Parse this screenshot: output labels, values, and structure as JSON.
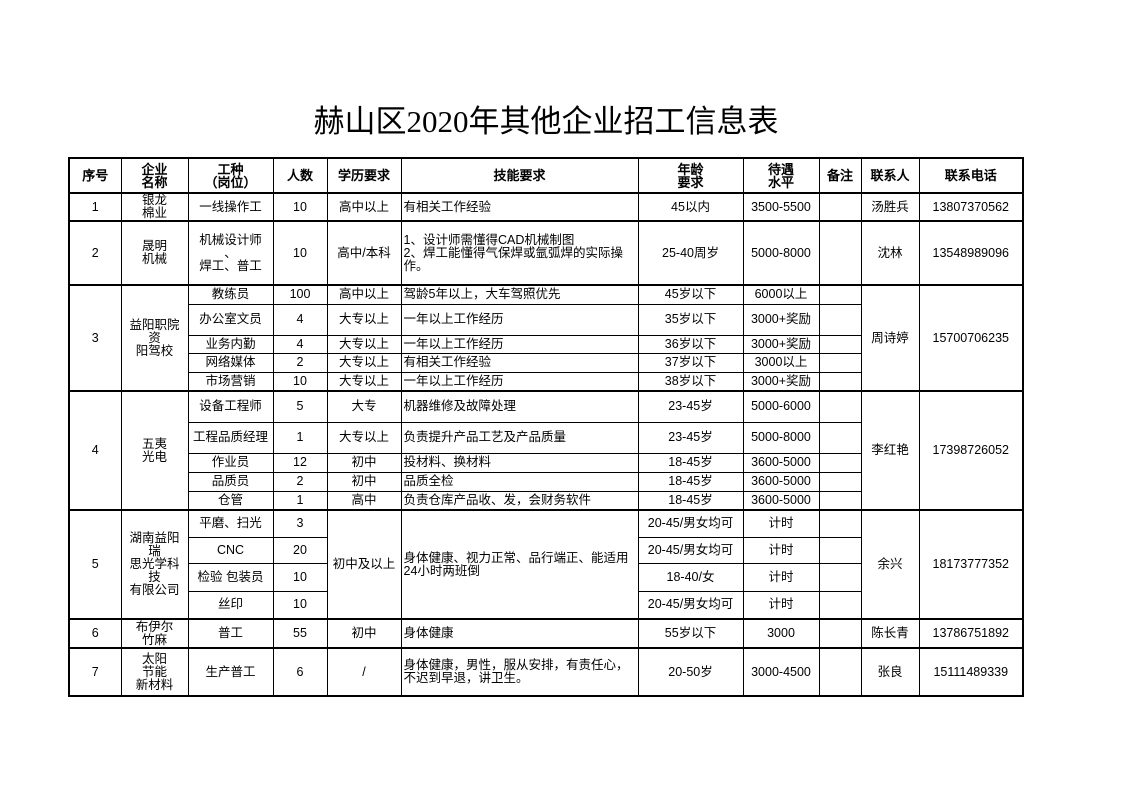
{
  "title": "赫山区2020年其他企业招工信息表",
  "headers": [
    "序号",
    "企业\n名称",
    "工种\n（岗位）",
    "人数",
    "学历要求",
    "技能要求",
    "年龄\n要求",
    "待遇\n水平",
    "备注",
    "联系人",
    "联系电话"
  ],
  "companies": [
    {
      "no": "1",
      "name": "银龙\n棉业",
      "contact": "汤胜兵",
      "phone": "13807370562",
      "jobs": [
        {
          "job": "一线操作工",
          "count": "10",
          "edu": "高中以上",
          "skill": "有相关工作经验",
          "age": "45以内",
          "pay": "3500-5500"
        }
      ]
    },
    {
      "no": "2",
      "name": "晟明\n机械",
      "contact": "沈林",
      "phone": "13548989096",
      "jobs": [
        {
          "job": "机械设计师\n、\n焊工、普工",
          "count": "10",
          "edu": "高中/本科",
          "skill": "1、设计师需懂得CAD机械制图\n2、焊工能懂得气保焊或氩弧焊的实际操作。",
          "age": "25-40周岁",
          "pay": "5000-8000"
        }
      ]
    },
    {
      "no": "3",
      "name": "益阳职院资\n阳驾校",
      "contact": "周诗婷",
      "phone": "15700706235",
      "jobs": [
        {
          "job": "教练员",
          "count": "100",
          "edu": "高中以上",
          "skill": "驾龄5年以上，大车驾照优先",
          "age": "45岁以下",
          "pay": "6000以上"
        },
        {
          "job": "办公室文员",
          "count": "4",
          "edu": "大专以上",
          "skill": "一年以上工作经历",
          "age": "35岁以下",
          "pay": "3000+奖励"
        },
        {
          "job": "业务内勤",
          "count": "4",
          "edu": "大专以上",
          "skill": "一年以上工作经历",
          "age": "36岁以下",
          "pay": "3000+奖励"
        },
        {
          "job": "网络媒体",
          "count": "2",
          "edu": "大专以上",
          "skill": "有相关工作经验",
          "age": "37岁以下",
          "pay": "3000以上"
        },
        {
          "job": "市场营销",
          "count": "10",
          "edu": "大专以上",
          "skill": "一年以上工作经历",
          "age": "38岁以下",
          "pay": "3000+奖励"
        }
      ]
    },
    {
      "no": "4",
      "name": "五夷\n光电",
      "contact": "李红艳",
      "phone": "17398726052",
      "jobs": [
        {
          "job": "设备工程师",
          "count": "5",
          "edu": "大专",
          "skill": "机器维修及故障处理",
          "age": "23-45岁",
          "pay": "5000-6000"
        },
        {
          "job": "工程品质经理",
          "count": "1",
          "edu": "大专以上",
          "skill": "负责提升产品工艺及产品质量",
          "age": "23-45岁",
          "pay": "5000-8000"
        },
        {
          "job": "作业员",
          "count": "12",
          "edu": "初中",
          "skill": "投材料、换材料",
          "age": "18-45岁",
          "pay": "3600-5000"
        },
        {
          "job": "品质员",
          "count": "2",
          "edu": "初中",
          "skill": "品质全检",
          "age": "18-45岁",
          "pay": "3600-5000"
        },
        {
          "job": "仓管",
          "count": "1",
          "edu": "高中",
          "skill": "负责仓库产品收、发，会财务软件",
          "age": "18-45岁",
          "pay": "3600-5000"
        }
      ]
    },
    {
      "no": "5",
      "name": "湖南益阳瑞\n思光学科技\n有限公司",
      "contact": "余兴",
      "phone": "18173777352",
      "edu": "初中及以上",
      "skill": "身体健康、视力正常、品行端正、能适用24小时两班倒",
      "jobs": [
        {
          "job": "平磨、扫光",
          "count": "3",
          "age": "20-45/男女均可",
          "pay": "计时"
        },
        {
          "job": "CNC",
          "count": "20",
          "age": "20-45/男女均可",
          "pay": "计时"
        },
        {
          "job": "检验 包装员",
          "count": "10",
          "age": "18-40/女",
          "pay": "计时"
        },
        {
          "job": "丝印",
          "count": "10",
          "age": "20-45/男女均可",
          "pay": "计时"
        }
      ]
    },
    {
      "no": "6",
      "name": "布伊尔\n竹麻",
      "contact": "陈长青",
      "phone": "13786751892",
      "jobs": [
        {
          "job": "普工",
          "count": "55",
          "edu": "初中",
          "skill": "身体健康",
          "age": "55岁以下",
          "pay": "3000"
        }
      ]
    },
    {
      "no": "7",
      "name": "太阳\n节能\n新材料",
      "contact": "张良",
      "phone": "15111489339",
      "jobs": [
        {
          "job": "生产普工",
          "count": "6",
          "edu": "/",
          "skill": "身体健康，男性，服从安排，有责任心，不迟到早退，讲卫生。",
          "age": "20-50岁",
          "pay": "3000-4500"
        }
      ]
    }
  ]
}
